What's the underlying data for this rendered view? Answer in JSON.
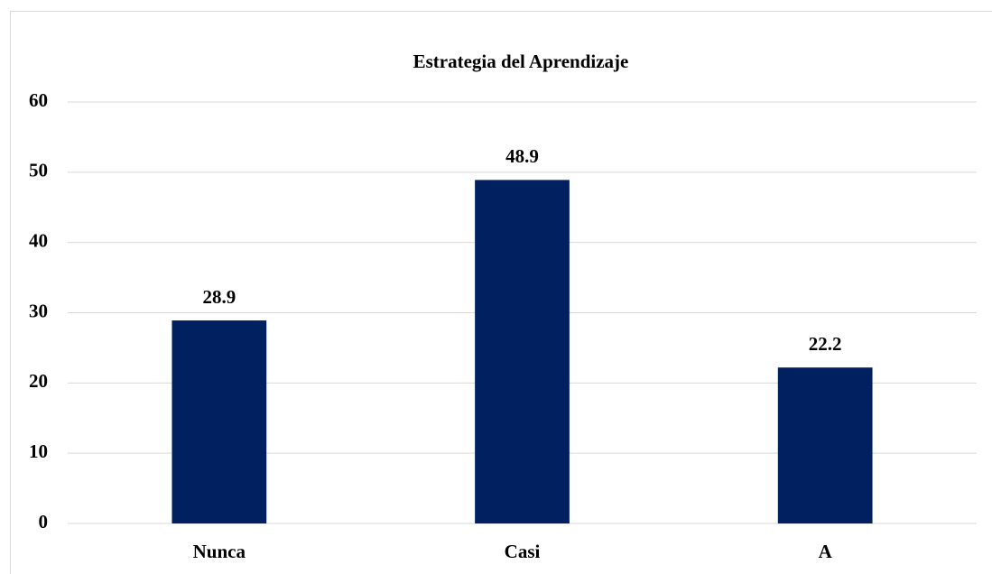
{
  "chart_data": {
    "type": "bar",
    "title": "Estrategia del Aprendizaje",
    "categories": [
      "Nunca",
      "Casi",
      "A"
    ],
    "values": [
      28.9,
      48.9,
      22.2
    ],
    "color": "#002060",
    "ylim": [
      0,
      60
    ],
    "yticks": [
      0,
      10,
      20,
      30,
      40,
      50,
      60
    ],
    "grid": true
  }
}
